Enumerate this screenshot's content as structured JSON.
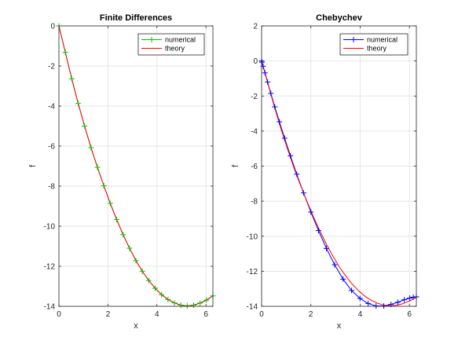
{
  "chart_data": [
    {
      "type": "line",
      "title": "Finite Differences",
      "xlabel": "x",
      "ylabel": "f",
      "xlim": [
        0,
        6.283
      ],
      "ylim": [
        -14,
        0
      ],
      "xticks": [
        "0",
        "2",
        "4",
        "6"
      ],
      "yticks": [
        "0",
        "-2",
        "-4",
        "-6",
        "-8",
        "-10",
        "-12",
        "-14"
      ],
      "grid": true,
      "legend": "top-right",
      "series": [
        {
          "name": "numerical",
          "style": "line with + markers",
          "color": "#00c000",
          "x": [
            0,
            0.262,
            0.524,
            0.785,
            1.047,
            1.309,
            1.571,
            1.833,
            2.094,
            2.356,
            2.618,
            2.88,
            3.142,
            3.403,
            3.665,
            3.927,
            4.189,
            4.451,
            4.712,
            4.974,
            5.236,
            5.498,
            5.76,
            6.021,
            6.283
          ],
          "y": [
            0,
            -1.32,
            -2.64,
            -3.87,
            -5.0,
            -6.08,
            -7.06,
            -7.98,
            -8.86,
            -9.67,
            -10.42,
            -11.1,
            -11.72,
            -12.25,
            -12.71,
            -13.1,
            -13.42,
            -13.66,
            -13.83,
            -13.94,
            -13.98,
            -13.94,
            -13.84,
            -13.69,
            -13.48
          ]
        },
        {
          "name": "theory",
          "style": "line",
          "color": "#ff0000",
          "x": [
            0,
            0.262,
            0.524,
            0.785,
            1.047,
            1.309,
            1.571,
            1.833,
            2.094,
            2.356,
            2.618,
            2.88,
            3.142,
            3.403,
            3.665,
            3.927,
            4.189,
            4.451,
            4.712,
            4.974,
            5.236,
            5.498,
            5.76,
            6.021,
            6.283
          ],
          "y": [
            0,
            -1.32,
            -2.64,
            -3.87,
            -5.0,
            -6.08,
            -7.06,
            -7.98,
            -8.86,
            -9.67,
            -10.42,
            -11.1,
            -11.72,
            -12.25,
            -12.71,
            -13.1,
            -13.42,
            -13.66,
            -13.83,
            -13.94,
            -13.98,
            -13.94,
            -13.84,
            -13.69,
            -13.48
          ]
        }
      ]
    },
    {
      "type": "line",
      "title": "Chebychev",
      "xlabel": "x",
      "ylabel": "f",
      "xlim": [
        0,
        6.283
      ],
      "ylim": [
        -14,
        2
      ],
      "xticks": [
        "0",
        "2",
        "4",
        "6"
      ],
      "yticks": [
        "2",
        "0",
        "-2",
        "-4",
        "-6",
        "-8",
        "-10",
        "-12",
        "-14"
      ],
      "grid": true,
      "legend": "top-right",
      "series": [
        {
          "name": "numerical",
          "style": "line with + markers",
          "color": "#0000ff",
          "x": [
            0,
            0.015,
            0.061,
            0.137,
            0.242,
            0.375,
            0.536,
            0.723,
            0.935,
            1.17,
            1.427,
            1.704,
            1.999,
            2.309,
            2.632,
            2.965,
            3.307,
            3.653,
            3.994,
            4.327,
            4.649,
            4.959,
            5.254,
            5.531,
            5.786,
            6.016,
            6.16,
            6.283
          ],
          "y": [
            0,
            -0.07,
            -0.3,
            -0.68,
            -1.2,
            -1.85,
            -2.62,
            -3.47,
            -4.41,
            -5.41,
            -6.46,
            -7.53,
            -8.62,
            -9.68,
            -10.7,
            -11.63,
            -12.45,
            -13.1,
            -13.55,
            -13.84,
            -13.98,
            -13.98,
            -13.89,
            -13.77,
            -13.63,
            -13.53,
            -13.48,
            -13.46
          ]
        },
        {
          "name": "theory",
          "style": "line",
          "color": "#ff0000",
          "x": [
            0,
            0.262,
            0.524,
            0.785,
            1.047,
            1.309,
            1.571,
            1.833,
            2.094,
            2.356,
            2.618,
            2.88,
            3.142,
            3.403,
            3.665,
            3.927,
            4.189,
            4.451,
            4.712,
            4.974,
            5.236,
            5.498,
            5.76,
            6.021,
            6.283
          ],
          "y": [
            0,
            -1.32,
            -2.64,
            -3.87,
            -5.0,
            -6.08,
            -7.06,
            -7.98,
            -8.86,
            -9.67,
            -10.42,
            -11.1,
            -11.72,
            -12.25,
            -12.71,
            -13.1,
            -13.42,
            -13.66,
            -13.83,
            -13.94,
            -13.98,
            -13.94,
            -13.84,
            -13.69,
            -13.48
          ]
        }
      ]
    }
  ]
}
